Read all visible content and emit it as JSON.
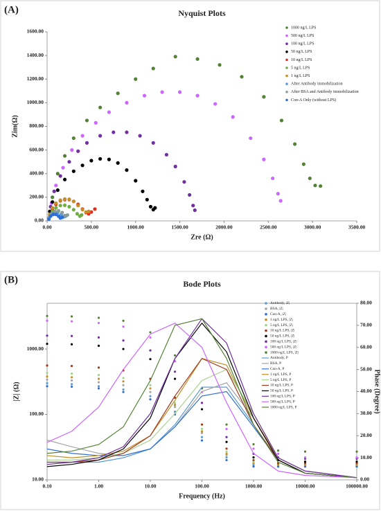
{
  "chart_data": [
    {
      "type": "scatter",
      "panel_label": "(A)",
      "title": "Nyquist Plots",
      "xlabel": "Zre (Ω)",
      "ylabel": "Zim(Ω)",
      "xlim": [
        0,
        3500
      ],
      "xticks": [
        {
          "value": 0,
          "label": "0.00"
        },
        {
          "value": 500,
          "label": "500.00"
        },
        {
          "value": 1000,
          "label": "1000.00"
        },
        {
          "value": 1500,
          "label": "1500.00"
        },
        {
          "value": 2000,
          "label": "2000.00"
        },
        {
          "value": 2500,
          "label": "2500.00"
        },
        {
          "value": 3000,
          "label": "3000.00"
        },
        {
          "value": 3500,
          "label": "3500.00"
        }
      ],
      "ylim": [
        0,
        1600
      ],
      "yticks": [
        {
          "value": 0,
          "label": "0.00"
        },
        {
          "value": 200,
          "label": "200.00"
        },
        {
          "value": 400,
          "label": "400.00"
        },
        {
          "value": 600,
          "label": "600.00"
        },
        {
          "value": 800,
          "label": "800.00"
        },
        {
          "value": 1000,
          "label": "1000.00"
        },
        {
          "value": 1200,
          "label": "1200.00"
        },
        {
          "value": 1400,
          "label": "1400.00"
        },
        {
          "value": 1600,
          "label": "1600.00"
        }
      ],
      "grid": false,
      "legend": "top-right",
      "series": [
        {
          "name": "1000 ng/L LPS",
          "color": "#548235",
          "x": [
            60,
            120,
            200,
            300,
            450,
            600,
            800,
            1000,
            1200,
            1450,
            1700,
            1950,
            2200,
            2450,
            2650,
            2800,
            2900,
            2970,
            3030,
            3090
          ],
          "values": [
            200,
            400,
            550,
            700,
            850,
            960,
            1080,
            1200,
            1290,
            1390,
            1370,
            1320,
            1220,
            1050,
            850,
            650,
            480,
            360,
            300,
            295
          ]
        },
        {
          "name": "500 ng/L LPS",
          "color": "#cc66ff",
          "x": [
            50,
            100,
            180,
            280,
            400,
            550,
            700,
            900,
            1100,
            1300,
            1500,
            1700,
            1900,
            2100,
            2300,
            2450,
            2550,
            2610,
            2640
          ],
          "values": [
            150,
            300,
            450,
            600,
            720,
            830,
            920,
            1000,
            1060,
            1090,
            1090,
            1060,
            990,
            880,
            700,
            520,
            360,
            230,
            170
          ]
        },
        {
          "name": "100 ng/L LPS",
          "color": "#7030a0",
          "x": [
            40,
            80,
            150,
            250,
            350,
            450,
            600,
            750,
            900,
            1050,
            1200,
            1350,
            1450,
            1550,
            1610,
            1650,
            1670
          ],
          "values": [
            120,
            250,
            380,
            500,
            590,
            660,
            720,
            750,
            750,
            720,
            660,
            560,
            460,
            330,
            220,
            130,
            90
          ]
        },
        {
          "name": "50 ng/L LPS",
          "color": "#000000",
          "x": [
            30,
            60,
            120,
            200,
            300,
            400,
            500,
            600,
            700,
            800,
            900,
            1000,
            1080,
            1130,
            1170,
            1200,
            1220
          ],
          "values": [
            80,
            160,
            260,
            350,
            420,
            470,
            510,
            525,
            520,
            490,
            430,
            340,
            250,
            180,
            120,
            95,
            110
          ]
        },
        {
          "name": "10 ng/L LPS",
          "color": "#e03020",
          "x": [
            30,
            60,
            100,
            150,
            200,
            250,
            300,
            350,
            400,
            440,
            470,
            500,
            540
          ],
          "values": [
            50,
            100,
            140,
            170,
            180,
            180,
            165,
            140,
            100,
            70,
            60,
            75,
            100
          ]
        },
        {
          "name": "5 ng/L LPS",
          "color": "#70ad47",
          "x": [
            30,
            60,
            100,
            150,
            200,
            250,
            300,
            340,
            370,
            390
          ],
          "values": [
            40,
            80,
            110,
            130,
            132,
            120,
            95,
            60,
            40,
            50
          ]
        },
        {
          "name": "1 ng/L LPS",
          "color": "#c0902a",
          "x": [
            30,
            60,
            100,
            150,
            200,
            250,
            300,
            350,
            400,
            440,
            470
          ],
          "values": [
            55,
            110,
            150,
            175,
            185,
            183,
            165,
            130,
            95,
            75,
            80
          ]
        },
        {
          "name": "After Antibody immobilization",
          "color": "#5b9bd5",
          "x": [
            20,
            50,
            80,
            120,
            160,
            190,
            210
          ],
          "values": [
            20,
            50,
            65,
            70,
            55,
            35,
            40
          ]
        },
        {
          "name": "After BSA and Antibody immobilization",
          "color": "#8c9a9a",
          "x": [
            20,
            50,
            90,
            130,
            170,
            200,
            230
          ],
          "values": [
            25,
            60,
            80,
            85,
            70,
            45,
            50
          ]
        },
        {
          "name": "Con-A Only (without LPS)",
          "color": "#2e6fd6",
          "x": [
            20,
            40,
            70,
            100,
            130,
            150,
            170
          ],
          "values": [
            15,
            40,
            55,
            55,
            40,
            25,
            30
          ]
        }
      ]
    },
    {
      "type": "bode",
      "panel_label": "(B)",
      "title": "Bode Plots",
      "xlabel": "Frequency (Hz)",
      "ylabel": "|Z| (Ω)",
      "y2label": "Phase (Degree)",
      "log_x": true,
      "log_y": true,
      "grid": false,
      "legend": "top-right",
      "xlim": [
        0.1,
        100000
      ],
      "xticks": [
        {
          "value": 0.1,
          "label": "0.10"
        },
        {
          "value": 1,
          "label": "1.00"
        },
        {
          "value": 10,
          "label": "10.00"
        },
        {
          "value": 100,
          "label": "100.00"
        },
        {
          "value": 1000,
          "label": "1000.00"
        },
        {
          "value": 10000,
          "label": "10000.00"
        },
        {
          "value": 100000,
          "label": "100000.00"
        }
      ],
      "ylim": [
        10,
        5000
      ],
      "yticks": [
        {
          "value": 10,
          "label": "10.00"
        },
        {
          "value": 100,
          "label": "100.00"
        },
        {
          "value": 1000,
          "label": "1000.00"
        }
      ],
      "y2lim": [
        0,
        80
      ],
      "y2ticks": [
        {
          "value": 0,
          "label": "0.00"
        },
        {
          "value": 10,
          "label": "10.00"
        },
        {
          "value": 20,
          "label": "20.00"
        },
        {
          "value": 30,
          "label": "30.00"
        },
        {
          "value": 40,
          "label": "40.00"
        },
        {
          "value": 50,
          "label": "50.00"
        },
        {
          "value": 60,
          "label": "60.00"
        },
        {
          "value": 70,
          "label": "70.00"
        },
        {
          "value": 80,
          "label": "80.00"
        }
      ],
      "x": [
        0.1,
        0.3,
        1,
        3,
        10,
        30,
        100,
        300,
        1000,
        3000,
        10000,
        100000
      ],
      "series": [
        {
          "name": "Antibody, |Z|",
          "color": "#5b9bd5",
          "style": "dots",
          "values": [
            300,
            290,
            270,
            240,
            190,
            110,
            45,
            22,
            17,
            16,
            16,
            16
          ]
        },
        {
          "name": "BSA, |Z|",
          "color": "#a5a5a5",
          "style": "dots",
          "values": [
            340,
            330,
            310,
            280,
            220,
            130,
            52,
            24,
            18,
            17,
            17,
            17
          ]
        },
        {
          "name": "Con-A, |Z|",
          "color": "#2e6fd6",
          "style": "dots",
          "values": [
            270,
            265,
            250,
            220,
            170,
            100,
            40,
            20,
            16,
            16,
            16,
            16
          ]
        },
        {
          "name": "1 ng/L LPS, |Z|",
          "color": "#c0902a",
          "style": "dots",
          "values": [
            380,
            370,
            350,
            320,
            250,
            140,
            55,
            25,
            18,
            17,
            17,
            17
          ]
        },
        {
          "name": "5 ng/L LPS, |Z|",
          "color": "#a9d18e",
          "style": "dots",
          "values": [
            430,
            420,
            400,
            360,
            280,
            150,
            60,
            27,
            19,
            18,
            18,
            18
          ]
        },
        {
          "name": "10 ng/L LPS, |Z|",
          "color": "#9e3a1e",
          "style": "dots",
          "values": [
            560,
            550,
            520,
            470,
            350,
            180,
            70,
            30,
            20,
            18,
            18,
            18
          ]
        },
        {
          "name": "50 ng/L LPS, |Z|",
          "color": "#000000",
          "style": "dots",
          "values": [
            1200,
            1180,
            1120,
            1000,
            700,
            350,
            120,
            38,
            22,
            20,
            19,
            19
          ]
        },
        {
          "name": "100 ng/L LPS, |Z|",
          "color": "#7030a0",
          "style": "dots",
          "values": [
            1600,
            1580,
            1500,
            1350,
            950,
            450,
            150,
            45,
            25,
            22,
            21,
            21
          ]
        },
        {
          "name": "500 ng/L LPS, |Z|",
          "color": "#cc66ff",
          "style": "dots",
          "values": [
            2700,
            2650,
            2500,
            2200,
            1500,
            650,
            220,
            60,
            30,
            25,
            22,
            22
          ]
        },
        {
          "name": "1000 ng/L LPS, |Z|",
          "color": "#548235",
          "style": "dots",
          "values": [
            3200,
            3150,
            3000,
            2700,
            1800,
            800,
            250,
            70,
            35,
            28,
            27,
            27
          ]
        },
        {
          "name": "Antibody, P",
          "color": "#5b9bd5",
          "style": "line",
          "axis": "y2",
          "values": [
            8,
            8,
            8,
            10,
            14,
            25,
            42,
            42,
            25,
            9,
            3,
            1
          ]
        },
        {
          "name": "BSA, P",
          "color": "#a5a5a5",
          "style": "line",
          "axis": "y2",
          "values": [
            18,
            15,
            12,
            11,
            14,
            24,
            40,
            44,
            28,
            10,
            4,
            1
          ]
        },
        {
          "name": "Con-A, P",
          "color": "#2e6fd6",
          "style": "line",
          "axis": "y2",
          "values": [
            14,
            12,
            11,
            11,
            14,
            24,
            38,
            40,
            24,
            9,
            3,
            1
          ]
        },
        {
          "name": "1 ng/L LPS, P",
          "color": "#c0902a",
          "style": "line",
          "axis": "y2",
          "values": [
            11,
            10,
            11,
            13,
            20,
            36,
            55,
            52,
            28,
            10,
            4,
            1
          ]
        },
        {
          "name": "5 ng/L LPS, P",
          "color": "#a9d18e",
          "style": "line",
          "axis": "y2",
          "values": [
            9,
            9,
            10,
            12,
            18,
            30,
            45,
            50,
            30,
            10,
            4,
            1
          ]
        },
        {
          "name": "10 ng/L LPS, P",
          "color": "#9e3a1e",
          "style": "line",
          "axis": "y2",
          "values": [
            8,
            8,
            9,
            12,
            20,
            38,
            55,
            50,
            25,
            9,
            3,
            1
          ]
        },
        {
          "name": "50 ng/L LPS, P",
          "color": "#000000",
          "style": "line",
          "axis": "y2",
          "values": [
            6,
            7,
            9,
            14,
            28,
            55,
            71,
            58,
            28,
            9,
            3,
            1
          ]
        },
        {
          "name": "100 ng/L LPS, P",
          "color": "#7030a0",
          "style": "line",
          "axis": "y2",
          "values": [
            7,
            8,
            10,
            15,
            30,
            55,
            73,
            62,
            30,
            10,
            4,
            1
          ]
        },
        {
          "name": "500 ng/L LPS, P",
          "color": "#cc66ff",
          "style": "line",
          "axis": "y2",
          "values": [
            17,
            22,
            33,
            50,
            66,
            71,
            60,
            35,
            12,
            4,
            2,
            1
          ]
        },
        {
          "name": "1000 ng/L LPS, P",
          "color": "#548235",
          "style": "line",
          "axis": "y2",
          "values": [
            12,
            13,
            16,
            24,
            45,
            70,
            73,
            55,
            25,
            8,
            3,
            1
          ]
        }
      ]
    }
  ]
}
